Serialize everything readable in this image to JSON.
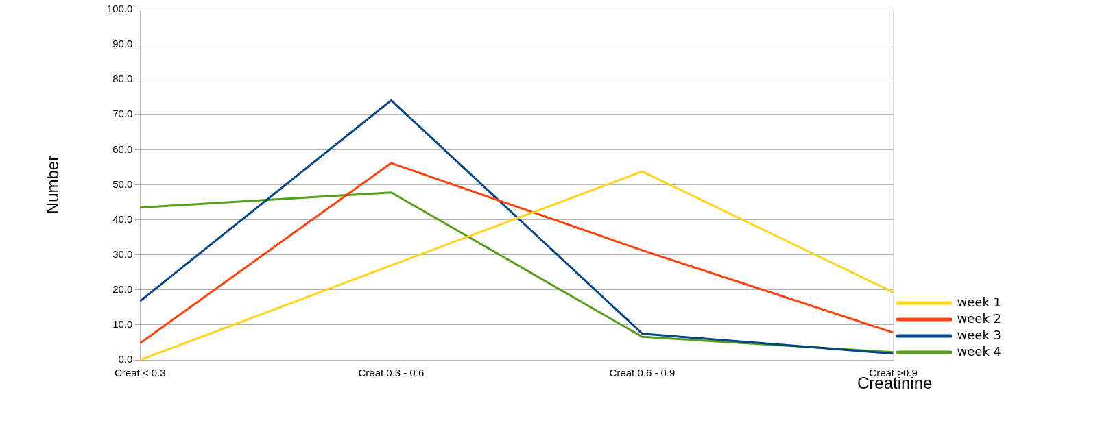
{
  "chart_data": {
    "type": "line",
    "xlabel": "Creatinine",
    "ylabel": "Number",
    "categories": [
      "Creat < 0.3",
      "Creat 0.3 - 0.6",
      "Creat 0.6 - 0.9",
      "Creat >0.9"
    ],
    "series": [
      {
        "name": "week 1",
        "color": "#ffd320",
        "values": [
          0,
          27,
          53.8,
          19.3
        ]
      },
      {
        "name": "week 2",
        "color": "#ff420e",
        "values": [
          4.8,
          56.2,
          31.3,
          7.8
        ]
      },
      {
        "name": "week 3",
        "color": "#004586",
        "values": [
          16.8,
          74.1,
          7.5,
          1.8
        ]
      },
      {
        "name": "week 4",
        "color": "#579d1c",
        "values": [
          43.5,
          47.8,
          6.6,
          2.2
        ]
      }
    ],
    "ylim": [
      0,
      100
    ],
    "yticks": [
      {
        "value": 0,
        "label": "0.0"
      },
      {
        "value": 10,
        "label": "10.0"
      },
      {
        "value": 20,
        "label": "20.0"
      },
      {
        "value": 30,
        "label": "30.0"
      },
      {
        "value": 40,
        "label": "40.0"
      },
      {
        "value": 50,
        "label": "50.0"
      },
      {
        "value": 60,
        "label": "60.0"
      },
      {
        "value": 70,
        "label": "70.0"
      },
      {
        "value": 80,
        "label": "80.0"
      },
      {
        "value": 90,
        "label": "90.0"
      },
      {
        "value": 100,
        "label": "100.0"
      }
    ],
    "grid": "y",
    "legend": "right",
    "marker": "none",
    "line_style": "solid"
  }
}
